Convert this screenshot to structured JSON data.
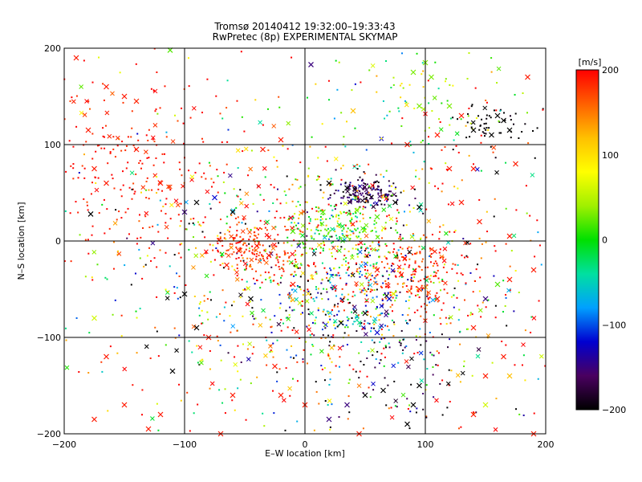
{
  "chart_data": {
    "type": "scatter",
    "title": "Tromsø 20140412 19:32:00–19:33:43",
    "subtitle": "RwPretec (8p) EXPERIMENTAL SKYMAP",
    "xlabel": "E–W location [km]",
    "ylabel": "N–S location [km]",
    "xlim": [
      -200,
      200
    ],
    "ylim": [
      -200,
      200
    ],
    "xticks": [
      -200,
      -100,
      0,
      100,
      200
    ],
    "yticks": [
      -200,
      -100,
      0,
      100,
      200
    ],
    "grid": true,
    "colorbar": {
      "label": "[m/s]",
      "range": [
        -200,
        200
      ],
      "ticks": [
        200,
        100,
        0,
        -100,
        -200
      ],
      "colors": [
        "#000000",
        "#4a0060",
        "#0000d0",
        "#00a0ff",
        "#00e0a0",
        "#00e000",
        "#a0f000",
        "#ffff00",
        "#ffc000",
        "#ff6000",
        "#ff0000"
      ]
    },
    "clusters": [
      {
        "x": 50,
        "y": 50,
        "sx": 15,
        "sy": 8,
        "n": 160,
        "v": -170,
        "sv": 25
      },
      {
        "x": 30,
        "y": 10,
        "sx": 25,
        "sy": 18,
        "n": 200,
        "v": 20,
        "sv": 40
      },
      {
        "x": 80,
        "y": -35,
        "sx": 28,
        "sy": 20,
        "n": 220,
        "v": 185,
        "sv": 20
      },
      {
        "x": -40,
        "y": -5,
        "sx": 20,
        "sy": 15,
        "n": 180,
        "v": 180,
        "sv": 20
      },
      {
        "x": 40,
        "y": -70,
        "sx": 35,
        "sy": 25,
        "n": 200,
        "v": -90,
        "sv": 70
      },
      {
        "x": -150,
        "y": 80,
        "sx": 40,
        "sy": 50,
        "n": 220,
        "v": 190,
        "sv": 12
      },
      {
        "x": 155,
        "y": 120,
        "sx": 18,
        "sy": 12,
        "n": 50,
        "v": -200,
        "sv": 5
      },
      {
        "x": 20,
        "y": -40,
        "sx": 90,
        "sy": 80,
        "n": 900,
        "v": 60,
        "sv": 160
      },
      {
        "x": 0,
        "y": 0,
        "sx": 150,
        "sy": 150,
        "n": 400,
        "v": 150,
        "sv": 100
      },
      {
        "x": 100,
        "y": 150,
        "sx": 40,
        "sy": 30,
        "n": 70,
        "v": 30,
        "sv": 50
      },
      {
        "x": 80,
        "y": -150,
        "sx": 30,
        "sy": 25,
        "n": 60,
        "v": -180,
        "sv": 30
      }
    ],
    "cross_markers": [
      {
        "x": -190,
        "y": 190,
        "v": 190
      },
      {
        "x": -165,
        "y": 160,
        "v": 190
      },
      {
        "x": -150,
        "y": 150,
        "v": 190
      },
      {
        "x": -140,
        "y": 145,
        "v": 185
      },
      {
        "x": -180,
        "y": 115,
        "v": 190
      },
      {
        "x": -175,
        "y": 75,
        "v": 190
      },
      {
        "x": -165,
        "y": 60,
        "v": 190
      },
      {
        "x": -140,
        "y": 95,
        "v": 190
      },
      {
        "x": -120,
        "y": 60,
        "v": 190
      },
      {
        "x": -112,
        "y": 198,
        "v": 20
      },
      {
        "x": -178,
        "y": 28,
        "v": -200
      },
      {
        "x": -175,
        "y": -80,
        "v": 60
      },
      {
        "x": -165,
        "y": -120,
        "v": 190
      },
      {
        "x": -150,
        "y": -170,
        "v": 190
      },
      {
        "x": -130,
        "y": -195,
        "v": 190
      },
      {
        "x": -110,
        "y": -135,
        "v": -200
      },
      {
        "x": -90,
        "y": -90,
        "v": -200
      },
      {
        "x": -80,
        "y": -100,
        "v": 190
      },
      {
        "x": -70,
        "y": -200,
        "v": 190
      },
      {
        "x": -60,
        "y": -160,
        "v": 190
      },
      {
        "x": -45,
        "y": -60,
        "v": -200
      },
      {
        "x": -90,
        "y": 40,
        "v": -200
      },
      {
        "x": -100,
        "y": 30,
        "v": -150
      },
      {
        "x": -75,
        "y": 45,
        "v": -120
      },
      {
        "x": -60,
        "y": 30,
        "v": -200
      },
      {
        "x": -35,
        "y": 95,
        "v": 190
      },
      {
        "x": -20,
        "y": 105,
        "v": 190
      },
      {
        "x": 5,
        "y": 183,
        "v": -150
      },
      {
        "x": 40,
        "y": 135,
        "v": 120
      },
      {
        "x": 90,
        "y": 175,
        "v": 30
      },
      {
        "x": 100,
        "y": 185,
        "v": 30
      },
      {
        "x": 105,
        "y": 170,
        "v": 30
      },
      {
        "x": 95,
        "y": 140,
        "v": 30
      },
      {
        "x": 120,
        "y": 140,
        "v": 30
      },
      {
        "x": 130,
        "y": 130,
        "v": 190
      },
      {
        "x": 160,
        "y": 130,
        "v": -200
      },
      {
        "x": 155,
        "y": 110,
        "v": -200
      },
      {
        "x": 140,
        "y": 115,
        "v": -200
      },
      {
        "x": 165,
        "y": 125,
        "v": -200
      },
      {
        "x": 170,
        "y": 115,
        "v": -200
      },
      {
        "x": 120,
        "y": 75,
        "v": 190
      },
      {
        "x": 140,
        "y": 75,
        "v": 190
      },
      {
        "x": 130,
        "y": 40,
        "v": 190
      },
      {
        "x": 145,
        "y": 20,
        "v": 190
      },
      {
        "x": 170,
        "y": 5,
        "v": 190
      },
      {
        "x": 190,
        "y": -30,
        "v": 190
      },
      {
        "x": 170,
        "y": -40,
        "v": 190
      },
      {
        "x": 160,
        "y": -45,
        "v": 20
      },
      {
        "x": 150,
        "y": -60,
        "v": -150
      },
      {
        "x": 140,
        "y": -90,
        "v": 190
      },
      {
        "x": 165,
        "y": -120,
        "v": 190
      },
      {
        "x": 170,
        "y": -140,
        "v": 120
      },
      {
        "x": 150,
        "y": -140,
        "v": 190
      },
      {
        "x": 150,
        "y": -170,
        "v": 60
      },
      {
        "x": 140,
        "y": -180,
        "v": 190
      },
      {
        "x": 190,
        "y": -200,
        "v": 190
      },
      {
        "x": 95,
        "y": -150,
        "v": -200
      },
      {
        "x": 90,
        "y": -170,
        "v": -200
      },
      {
        "x": 85,
        "y": -190,
        "v": -200
      },
      {
        "x": 65,
        "y": -155,
        "v": -200
      },
      {
        "x": 50,
        "y": -160,
        "v": -200
      },
      {
        "x": 35,
        "y": -170,
        "v": -150
      },
      {
        "x": -25,
        "y": -130,
        "v": 190
      },
      {
        "x": -20,
        "y": -160,
        "v": 190
      },
      {
        "x": 0,
        "y": -170,
        "v": 190
      },
      {
        "x": 20,
        "y": -185,
        "v": -150
      },
      {
        "x": 45,
        "y": -200,
        "v": 190
      },
      {
        "x": 50,
        "y": -75,
        "v": -200
      },
      {
        "x": 60,
        "y": -95,
        "v": -120
      },
      {
        "x": 30,
        "y": -85,
        "v": -200
      },
      {
        "x": 70,
        "y": -60,
        "v": -120
      },
      {
        "x": 80,
        "y": -35,
        "v": 190
      },
      {
        "x": 95,
        "y": -50,
        "v": 190
      },
      {
        "x": 110,
        "y": -60,
        "v": 190
      },
      {
        "x": 60,
        "y": -30,
        "v": 190
      },
      {
        "x": 35,
        "y": 55,
        "v": -200
      },
      {
        "x": 20,
        "y": 60,
        "v": -200
      },
      {
        "x": 75,
        "y": 40,
        "v": -200
      },
      {
        "x": 95,
        "y": 35,
        "v": -200
      },
      {
        "x": 60,
        "y": 25,
        "v": 20
      },
      {
        "x": 15,
        "y": 30,
        "v": 20
      },
      {
        "x": -10,
        "y": 10,
        "v": 20
      },
      {
        "x": -55,
        "y": -10,
        "v": 190
      },
      {
        "x": -40,
        "y": -5,
        "v": 190
      },
      {
        "x": -30,
        "y": -15,
        "v": 190
      },
      {
        "x": -65,
        "y": -25,
        "v": 190
      },
      {
        "x": -10,
        "y": -45,
        "v": 190
      },
      {
        "x": -100,
        "y": -55,
        "v": -200
      },
      {
        "x": -120,
        "y": -180,
        "v": 190
      },
      {
        "x": -175,
        "y": -185,
        "v": 190
      },
      {
        "x": 85,
        "y": 100,
        "v": 190
      },
      {
        "x": 110,
        "y": 110,
        "v": 190
      },
      {
        "x": 175,
        "y": 80,
        "v": 190
      },
      {
        "x": 185,
        "y": 170,
        "v": 190
      }
    ]
  }
}
